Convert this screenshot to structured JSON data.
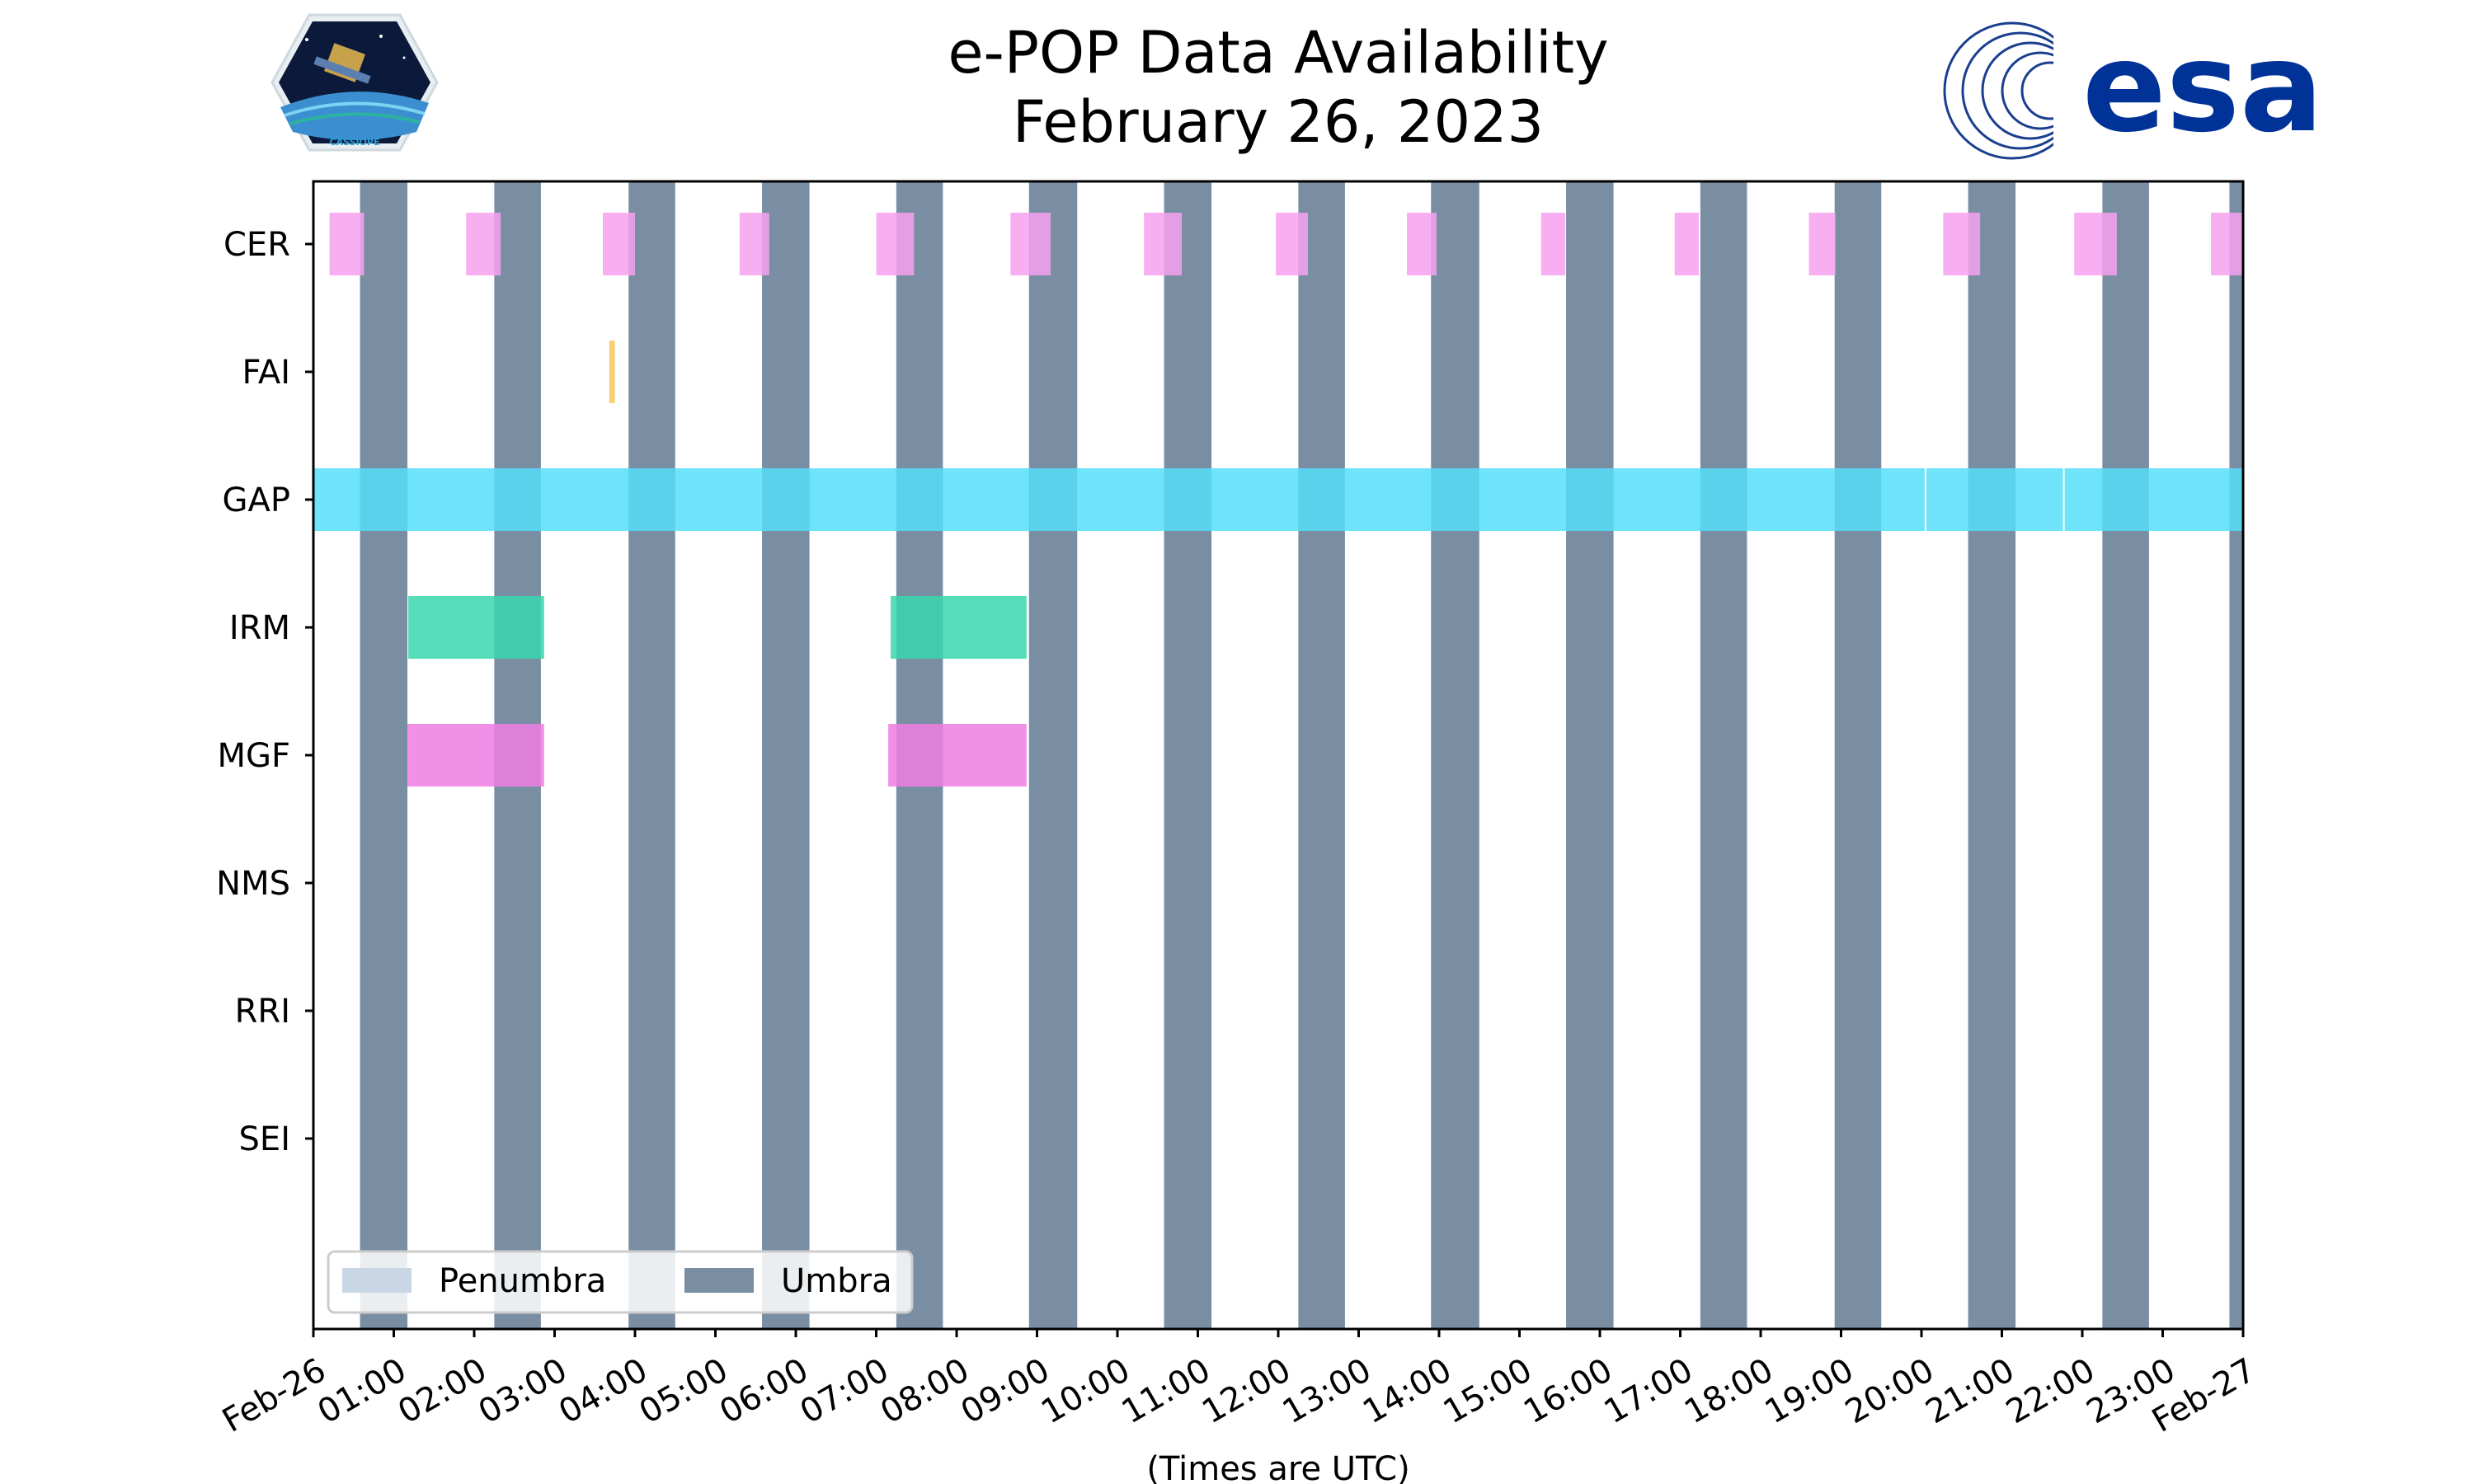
{
  "chart_data": {
    "type": "timeline",
    "title": [
      "e-POP Data Availability",
      "February 26, 2023"
    ],
    "xlabel": "(Times are UTC)",
    "xlim": [
      0,
      24
    ],
    "x_unit": "hours UTC",
    "x_tick_labels": [
      "Feb-26",
      "01:00",
      "02:00",
      "03:00",
      "04:00",
      "05:00",
      "06:00",
      "07:00",
      "08:00",
      "09:00",
      "10:00",
      "11:00",
      "12:00",
      "13:00",
      "14:00",
      "15:00",
      "16:00",
      "17:00",
      "18:00",
      "19:00",
      "20:00",
      "21:00",
      "22:00",
      "23:00",
      "Feb-27"
    ],
    "instruments": [
      "CER",
      "FAI",
      "GAP",
      "IRM",
      "MGF",
      "NMS",
      "RRI",
      "SEI"
    ],
    "umbra_intervals": [
      [
        0.58,
        1.17
      ],
      [
        2.25,
        2.83
      ],
      [
        3.92,
        4.5
      ],
      [
        5.58,
        6.17
      ],
      [
        7.25,
        7.83
      ],
      [
        8.9,
        9.5
      ],
      [
        10.58,
        11.17
      ],
      [
        12.25,
        12.83
      ],
      [
        13.9,
        14.5
      ],
      [
        15.58,
        16.17
      ],
      [
        17.25,
        17.83
      ],
      [
        18.92,
        19.5
      ],
      [
        20.58,
        21.17
      ],
      [
        22.25,
        22.83
      ],
      [
        23.83,
        24.0
      ]
    ],
    "penumbra_intervals": [],
    "series": [
      {
        "name": "CER",
        "color": "#f7a1ef",
        "intervals": [
          [
            0.2,
            0.63
          ],
          [
            1.9,
            2.33
          ],
          [
            3.6,
            4.0
          ],
          [
            5.3,
            5.67
          ],
          [
            7.0,
            7.47
          ],
          [
            8.67,
            9.17
          ],
          [
            10.33,
            10.8
          ],
          [
            11.97,
            12.37
          ],
          [
            13.6,
            13.97
          ],
          [
            15.27,
            15.57
          ],
          [
            16.93,
            17.23
          ],
          [
            18.6,
            18.93
          ],
          [
            20.27,
            20.73
          ],
          [
            21.9,
            22.43
          ],
          [
            23.6,
            24.0
          ]
        ]
      },
      {
        "name": "FAI",
        "color": "#f9c660",
        "intervals": [
          [
            3.68,
            3.75
          ]
        ]
      },
      {
        "name": "GAP",
        "color": "#55def9",
        "intervals": [
          [
            0.0,
            20.05
          ],
          [
            20.05,
            21.77
          ],
          [
            21.77,
            24.0
          ]
        ]
      },
      {
        "name": "IRM",
        "color": "#3ad7ad",
        "intervals": [
          [
            1.18,
            2.87
          ],
          [
            7.18,
            8.87
          ]
        ]
      },
      {
        "name": "MGF",
        "color": "#f07de4",
        "intervals": [
          [
            1.17,
            2.87
          ],
          [
            7.15,
            8.87
          ]
        ]
      },
      {
        "name": "NMS",
        "color": "#bbbbbb",
        "intervals": []
      },
      {
        "name": "RRI",
        "color": "#bbbbbb",
        "intervals": []
      },
      {
        "name": "SEI",
        "color": "#bbbbbb",
        "intervals": []
      }
    ],
    "legend": {
      "position": "lower-left",
      "entries": [
        {
          "label": "Penumbra",
          "color": "#c9d6e6"
        },
        {
          "label": "Umbra",
          "color": "#7a8ea3"
        }
      ]
    }
  },
  "logos": {
    "left": {
      "name": "CASSIOPE mission badge",
      "text": "CASSIOPE"
    },
    "right": {
      "name": "esa logo",
      "text": "esa"
    }
  },
  "colors": {
    "umbra": "#7a8ea3",
    "penumbra": "#c9d6e6",
    "esa_blue": "#003298"
  }
}
